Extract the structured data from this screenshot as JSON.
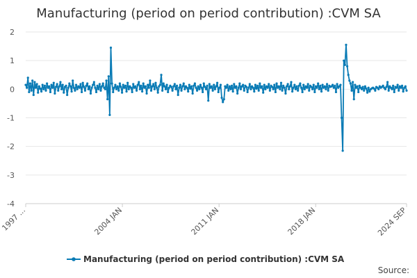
{
  "chart_data": {
    "type": "line",
    "title": "Manufacturing (period on period contribution) :CVM SA",
    "xlabel": "",
    "ylabel": "",
    "ylim": [
      -4,
      2
    ],
    "yticks": [
      2,
      1,
      0,
      -1,
      -2,
      -3,
      -4
    ],
    "x_range": [
      "1997 JAN",
      "2024 SEP"
    ],
    "x_tick_labels": [
      "1997 ...",
      "2004 JAN",
      "2011 JAN",
      "2018 JAN",
      "2024 SEP"
    ],
    "grid": true,
    "legend_position": "bottom",
    "series": [
      {
        "name": "Manufacturing (period on period contribution) :CVM SA",
        "color": "#0a7bb5",
        "values": [
          0.15,
          0.05,
          0.4,
          -0.1,
          0.2,
          -0.05,
          0.3,
          -0.2,
          0.25,
          0.05,
          0.18,
          -0.12,
          0.1,
          0.02,
          -0.08,
          0.15,
          0.0,
          0.12,
          -0.05,
          0.2,
          0.05,
          0.1,
          -0.1,
          0.15,
          0.05,
          0.22,
          -0.15,
          0.08,
          0.18,
          -0.05,
          0.1,
          0.25,
          0.0,
          0.15,
          -0.12,
          0.08,
          0.12,
          -0.2,
          0.05,
          0.2,
          0.1,
          -0.08,
          0.3,
          0.05,
          -0.05,
          0.15,
          0.0,
          0.1,
          0.05,
          0.18,
          -0.1,
          0.22,
          0.08,
          -0.05,
          0.12,
          0.2,
          0.0,
          0.1,
          -0.15,
          0.05,
          0.15,
          0.25,
          0.05,
          -0.1,
          0.12,
          0.0,
          0.18,
          -0.05,
          0.1,
          0.2,
          0.05,
          0.0,
          0.3,
          -0.35,
          0.45,
          -0.9,
          1.45,
          0.2,
          -0.1,
          0.05,
          0.15,
          0.0,
          0.1,
          -0.05,
          0.2,
          0.08,
          -0.12,
          0.15,
          0.05,
          0.12,
          -0.08,
          0.22,
          0.0,
          0.1,
          0.05,
          -0.1,
          0.18,
          0.05,
          0.1,
          -0.05,
          0.15,
          0.25,
          0.0,
          0.12,
          -0.08,
          0.2,
          0.05,
          0.1,
          -0.15,
          0.15,
          0.05,
          0.3,
          -0.05,
          0.1,
          0.18,
          0.0,
          0.22,
          0.05,
          -0.12,
          0.1,
          0.15,
          0.5,
          -0.05,
          0.2,
          0.1,
          0.0,
          0.15,
          -0.1,
          0.05,
          0.12,
          0.08,
          -0.05,
          0.1,
          0.18,
          0.0,
          0.12,
          -0.2,
          0.05,
          0.15,
          -0.05,
          0.1,
          0.2,
          0.0,
          0.1,
          0.05,
          -0.08,
          0.15,
          0.02,
          0.1,
          -0.15,
          0.12,
          0.2,
          0.05,
          -0.05,
          0.1,
          0.0,
          0.15,
          0.05,
          -0.1,
          0.2,
          0.08,
          0.0,
          0.12,
          -0.4,
          0.18,
          0.05,
          0.1,
          -0.05,
          0.15,
          0.0,
          0.1,
          0.22,
          -0.1,
          0.05,
          0.15,
          -0.3,
          -0.45,
          -0.35,
          0.1,
          0.05,
          0.15,
          -0.05,
          0.1,
          0.0,
          0.12,
          -0.08,
          0.18,
          0.05,
          0.1,
          -0.15,
          0.05,
          0.2,
          0.0,
          0.1,
          0.15,
          -0.05,
          0.12,
          0.08,
          -0.1,
          0.05,
          0.18,
          0.0,
          0.1,
          0.05,
          -0.08,
          0.15,
          0.02,
          0.12,
          -0.05,
          0.2,
          0.05,
          0.1,
          -0.12,
          0.15,
          0.0,
          0.1,
          0.05,
          0.18,
          -0.05,
          0.12,
          0.08,
          0.0,
          0.15,
          -0.1,
          0.2,
          0.05,
          0.1,
          0.0,
          0.22,
          -0.05,
          0.12,
          0.05,
          -0.15,
          0.1,
          0.18,
          0.0,
          0.1,
          0.25,
          -0.08,
          0.05,
          0.15,
          0.0,
          0.1,
          -0.05,
          0.12,
          0.2,
          0.05,
          -0.1,
          0.15,
          0.0,
          0.1,
          0.05,
          0.18,
          -0.05,
          0.12,
          0.08,
          0.0,
          0.15,
          -0.1,
          0.1,
          0.05,
          0.2,
          0.0,
          0.12,
          -0.08,
          0.15,
          0.05,
          0.1,
          0.0,
          0.18,
          -0.05,
          0.12,
          0.08,
          0.1,
          0.15,
          0.05,
          0.12,
          -0.1,
          0.18,
          0.05,
          0.1,
          0.15,
          -1.0,
          -2.15,
          1.0,
          0.85,
          1.55,
          0.8,
          0.5,
          0.3,
          0.2,
          -0.05,
          0.25,
          -0.35,
          0.15,
          0.05,
          0.1,
          -0.1,
          0.12,
          0.05,
          0.0,
          0.08,
          -0.05,
          0.1,
          0.02,
          -0.12,
          0.05,
          -0.08,
          0.0,
          0.03,
          0.05,
          0.02,
          -0.05,
          0.08,
          0.05,
          0.0,
          0.1,
          0.05,
          0.08,
          0.12,
          0.05,
          0.0,
          0.08,
          0.25,
          -0.05,
          0.1,
          0.05,
          0.0,
          0.12,
          -0.1,
          0.08,
          0.05,
          0.15,
          -0.05,
          0.1,
          0.05,
          0.12,
          -0.08,
          0.05,
          0.1,
          -0.05
        ]
      }
    ]
  },
  "legend": {
    "label": "Manufacturing (period on period contribution) :CVM SA"
  },
  "footer": {
    "source_label": "Source:"
  }
}
